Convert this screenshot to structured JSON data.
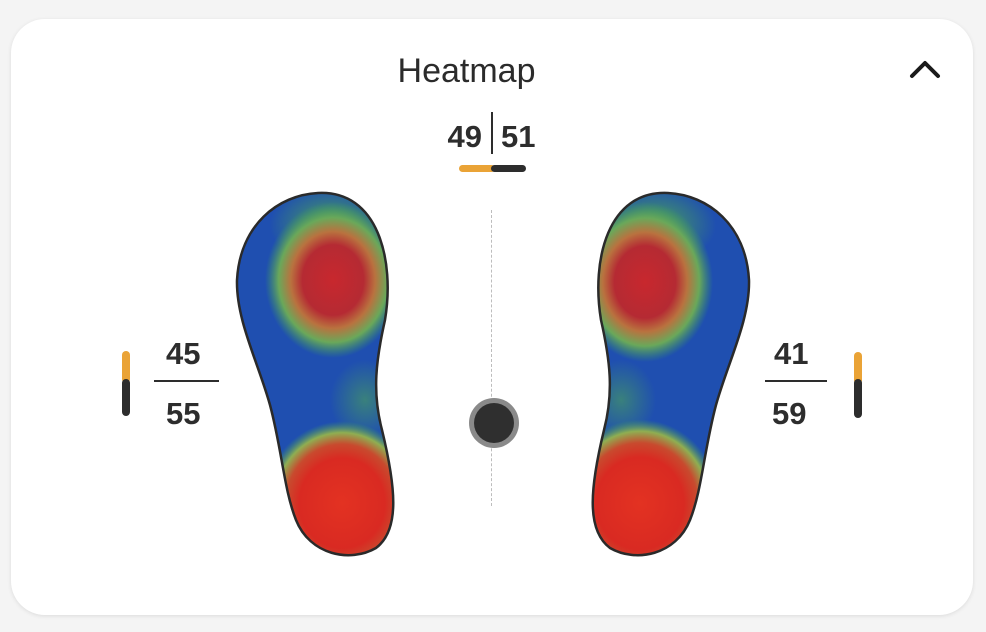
{
  "header": {
    "title": "Heatmap",
    "collapse_icon": "chevron-up-icon"
  },
  "balance": {
    "left_percent": "49",
    "right_percent": "51",
    "left_color": "#EAA336",
    "right_color": "#2D2D2D"
  },
  "left_foot": {
    "front_percent": "45",
    "rear_percent": "55"
  },
  "right_foot": {
    "front_percent": "41",
    "rear_percent": "59"
  },
  "center_of_pressure": {
    "icon": "center-of-pressure-marker"
  },
  "colors": {
    "accent": "#EAA336",
    "dark": "#2D2D2D",
    "heat_low": "#1F4FB0",
    "heat_mid": "#3F9E5A",
    "heat_high": "#D42A22"
  }
}
